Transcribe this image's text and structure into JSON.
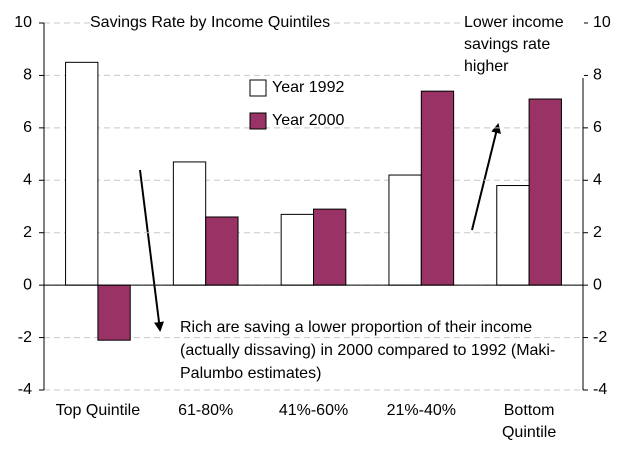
{
  "chart_data": {
    "type": "bar",
    "title": "Savings Rate by Income Quintiles",
    "categories": [
      "Top Quintile",
      "61-80%",
      "41%-60%",
      "21%-40%",
      "Bottom Quintile"
    ],
    "series": [
      {
        "name": "Year 1992",
        "color": "#ffffff",
        "values": [
          8.5,
          4.7,
          2.7,
          4.2,
          3.8
        ]
      },
      {
        "name": "Year 2000",
        "color": "#993366",
        "values": [
          -2.1,
          2.6,
          2.9,
          7.4,
          7.1
        ]
      }
    ],
    "ylim": [
      -4,
      10
    ],
    "yticks": [
      -4,
      -2,
      0,
      2,
      4,
      6,
      8,
      10
    ],
    "y2lim": [
      -4,
      10
    ],
    "y2ticks": [
      -4,
      -2,
      0,
      2,
      4,
      6,
      8,
      10
    ],
    "grid": true,
    "annotations": [
      "Lower income savings rate higher",
      "Rich are saving a lower proportion of their income (actually dissaving) in 2000 compared to 1992 (Maki-Palumbo estimates)"
    ]
  }
}
